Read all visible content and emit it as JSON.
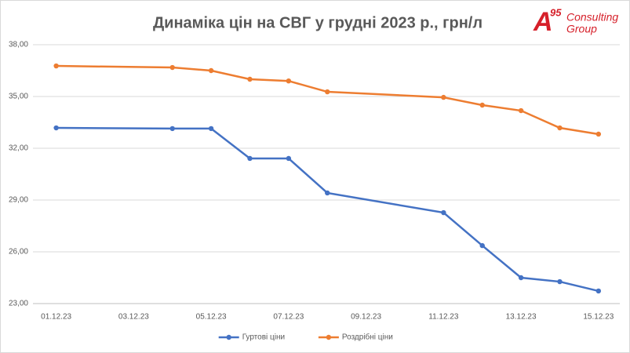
{
  "chart_data": {
    "type": "line",
    "title": "Динаміка цін на СВГ у грудні 2023 р., грн/л",
    "logo": {
      "mark": "A",
      "superscript": "95",
      "lines": [
        "Consulting",
        "Group"
      ]
    },
    "x": [
      "01.12.23",
      "04.12.23",
      "05.12.23",
      "06.12.23",
      "07.12.23",
      "08.12.23",
      "11.12.23",
      "12.12.23",
      "13.12.23",
      "14.12.23",
      "15.12.23"
    ],
    "xticks": [
      "01.12.23",
      "03.12.23",
      "05.12.23",
      "07.12.23",
      "09.12.23",
      "11.12.23",
      "13.12.23",
      "15.12.23"
    ],
    "series": [
      {
        "name": "Гуртові ціни",
        "color": "#4472c4",
        "values": [
          33.18,
          33.14,
          33.14,
          31.41,
          31.41,
          29.41,
          28.27,
          26.36,
          24.5,
          24.27,
          23.73
        ]
      },
      {
        "name": "Роздрібні ціни",
        "color": "#ed7d31",
        "values": [
          36.77,
          36.68,
          36.5,
          36.0,
          35.9,
          35.27,
          34.95,
          34.5,
          34.18,
          33.18,
          32.82
        ]
      }
    ],
    "ylim": [
      23,
      38
    ],
    "yticks": [
      {
        "value": 23,
        "label": "23,00"
      },
      {
        "value": 26,
        "label": "26,00"
      },
      {
        "value": 29,
        "label": "29,00"
      },
      {
        "value": 32,
        "label": "32,00"
      },
      {
        "value": 35,
        "label": "35,00"
      },
      {
        "value": 38,
        "label": "38,00"
      }
    ],
    "grid": true,
    "legend": "bottom"
  }
}
